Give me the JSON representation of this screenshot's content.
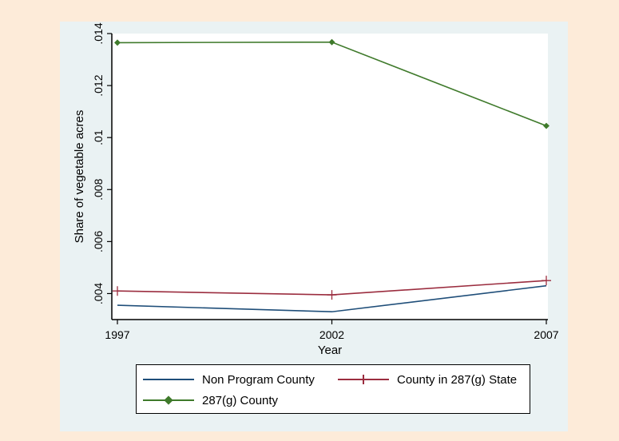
{
  "chart_data": {
    "type": "line",
    "x": [
      1997,
      2002,
      2007
    ],
    "xlabel": "Year",
    "ylabel": "Share of vegetable acres",
    "ylim": [
      0.003,
      0.014
    ],
    "yticks": [
      {
        "value": 0.004,
        "label": ".004"
      },
      {
        "value": 0.006,
        "label": ".006"
      },
      {
        "value": 0.008,
        "label": ".008"
      },
      {
        "value": 0.01,
        "label": ".01"
      },
      {
        "value": 0.012,
        "label": ".012"
      },
      {
        "value": 0.014,
        "label": ".014"
      }
    ],
    "xticks": [
      {
        "value": 1997,
        "label": "1997"
      },
      {
        "value": 2002,
        "label": "2002"
      },
      {
        "value": 2007,
        "label": "2007"
      }
    ],
    "series": [
      {
        "name": "Non Program County",
        "values": [
          0.00355,
          0.0033,
          0.0043
        ],
        "color": "#1f4e79",
        "marker": "none"
      },
      {
        "name": "County in 287(g) State",
        "values": [
          0.0041,
          0.00395,
          0.0045
        ],
        "color": "#9b2d3f",
        "marker": "plus"
      },
      {
        "name": "287(g) County",
        "values": [
          0.01365,
          0.01367,
          0.01045
        ],
        "color": "#3f7a2b",
        "marker": "diamond"
      }
    ],
    "grid": false,
    "legend": "bottom"
  }
}
